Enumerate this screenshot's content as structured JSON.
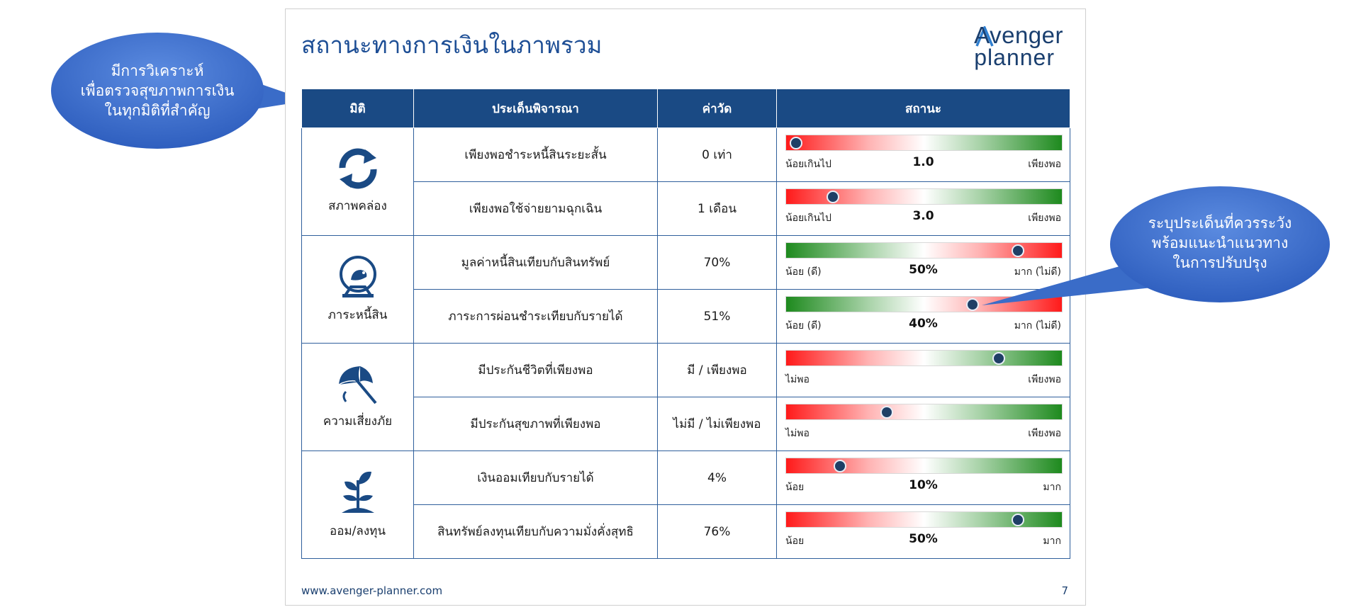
{
  "slide": {
    "title": "สถานะทางการเงินในภาพรวม",
    "logo": {
      "line1": "Avenger",
      "line2": "planner"
    },
    "footer_url": "www.avenger-planner.com",
    "page_number": "7"
  },
  "table": {
    "headers": {
      "dimension": "มิติ",
      "topic": "ประเด็นพิจารณา",
      "measure": "ค่าวัด",
      "status": "สถานะ"
    },
    "groups": [
      {
        "label": "สภาพคล่อง",
        "icon": "refresh-cycle-icon"
      },
      {
        "label": "ภาระหนี้สิน",
        "icon": "hamster-wheel-icon"
      },
      {
        "label": "ความเสี่ยงภัย",
        "icon": "umbrella-icon"
      },
      {
        "label": "ออม/ลงทุน",
        "icon": "plant-sprout-icon"
      }
    ],
    "rows": [
      {
        "topic": "เพียงพอชำระหนี้สินระยะสั้น",
        "measure": "0 เท่า",
        "scale": "red-to-green",
        "level": 0.035,
        "left": "น้อยเกินไป",
        "mid": "1.0",
        "right": "เพียงพอ"
      },
      {
        "topic": "เพียงพอใช้จ่ายยามฉุกเฉิน",
        "measure": "1 เดือน",
        "scale": "red-to-green",
        "level": 0.17,
        "left": "น้อยเกินไป",
        "mid": "3.0",
        "right": "เพียงพอ"
      },
      {
        "topic": "มูลค่าหนี้สินเทียบกับสินทรัพย์",
        "measure": "70%",
        "scale": "green-to-red",
        "level": 0.84,
        "left": "น้อย (ดี)",
        "mid": "50%",
        "right": "มาก (ไม่ดี)"
      },
      {
        "topic": "ภาระการผ่อนชำระเทียบกับรายได้",
        "measure": "51%",
        "scale": "green-to-red",
        "level": 0.675,
        "left": "น้อย (ดี)",
        "mid": "40%",
        "right": "มาก (ไม่ดี)"
      },
      {
        "topic": "มีประกันชีวิตที่เพียงพอ",
        "measure": "มี / เพียงพอ",
        "scale": "red-to-green",
        "level": 0.77,
        "left": "ไม่พอ",
        "mid": "",
        "right": "เพียงพอ"
      },
      {
        "topic": "มีประกันสุขภาพที่เพียงพอ",
        "measure": "ไม่มี / ไม่เพียงพอ",
        "scale": "red-to-green",
        "level": 0.365,
        "left": "ไม่พอ",
        "mid": "",
        "right": "เพียงพอ"
      },
      {
        "topic": "เงินออมเทียบกับรายได้",
        "measure": "4%",
        "scale": "red-to-green",
        "level": 0.195,
        "left": "น้อย",
        "mid": "10%",
        "right": "มาก"
      },
      {
        "topic": "สินทรัพย์ลงทุนเทียบกับความมั่งคั่งสุทธิ",
        "measure": "76%",
        "scale": "red-to-green",
        "level": 0.84,
        "left": "น้อย",
        "mid": "50%",
        "right": "มาก"
      }
    ]
  },
  "callouts": {
    "left": "มีการวิเคราะห์ เพื่อตรวจสุขภาพการเงิน ในทุกมิติที่สำคัญ",
    "right": "ระบุประเด็นที่ควรระวัง พร้อมแนะนำแนวทาง ในการปรับปรุง"
  },
  "colors": {
    "brand": "#1a4a84",
    "callout": "#3a6cc8",
    "good": "#1e8a1e",
    "bad": "#ff1a1a",
    "dot": "#1f3f66"
  }
}
